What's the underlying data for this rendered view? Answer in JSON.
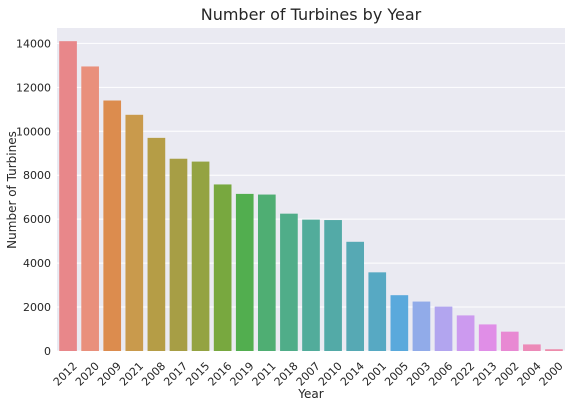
{
  "chart_data": {
    "type": "bar",
    "title": "Number of Turbines by Year",
    "xlabel": "Year",
    "ylabel": "Number of Turbines",
    "categories": [
      "2012",
      "2020",
      "2009",
      "2021",
      "2008",
      "2017",
      "2015",
      "2016",
      "2019",
      "2011",
      "2018",
      "2007",
      "2010",
      "2014",
      "2001",
      "2005",
      "2003",
      "2006",
      "2022",
      "2013",
      "2002",
      "2004",
      "2000"
    ],
    "values": [
      14100,
      12950,
      11400,
      10750,
      9700,
      8750,
      8620,
      7580,
      7150,
      7120,
      6250,
      5980,
      5960,
      4970,
      3580,
      2540,
      2250,
      2020,
      1620,
      1210,
      880,
      300,
      80
    ],
    "ylim": [
      0,
      14700
    ],
    "yticks": [
      0,
      2000,
      4000,
      6000,
      8000,
      10000,
      12000,
      14000
    ],
    "colors": [
      "#e8878a",
      "#e9907c",
      "#dc8c4e",
      "#c99a4c",
      "#b59d46",
      "#a79e45",
      "#94a342",
      "#78a83f",
      "#52ae4f",
      "#4fae73",
      "#50ad89",
      "#52ac9b",
      "#53aaa7",
      "#56a9b4",
      "#57a9c3",
      "#5aa9dc",
      "#91abe9",
      "#b2a5ef",
      "#cc9aef",
      "#e08ee7",
      "#e889d3",
      "#ec8ab8",
      "#ed8cab"
    ],
    "grid": true,
    "background": "#eaeaf2"
  }
}
